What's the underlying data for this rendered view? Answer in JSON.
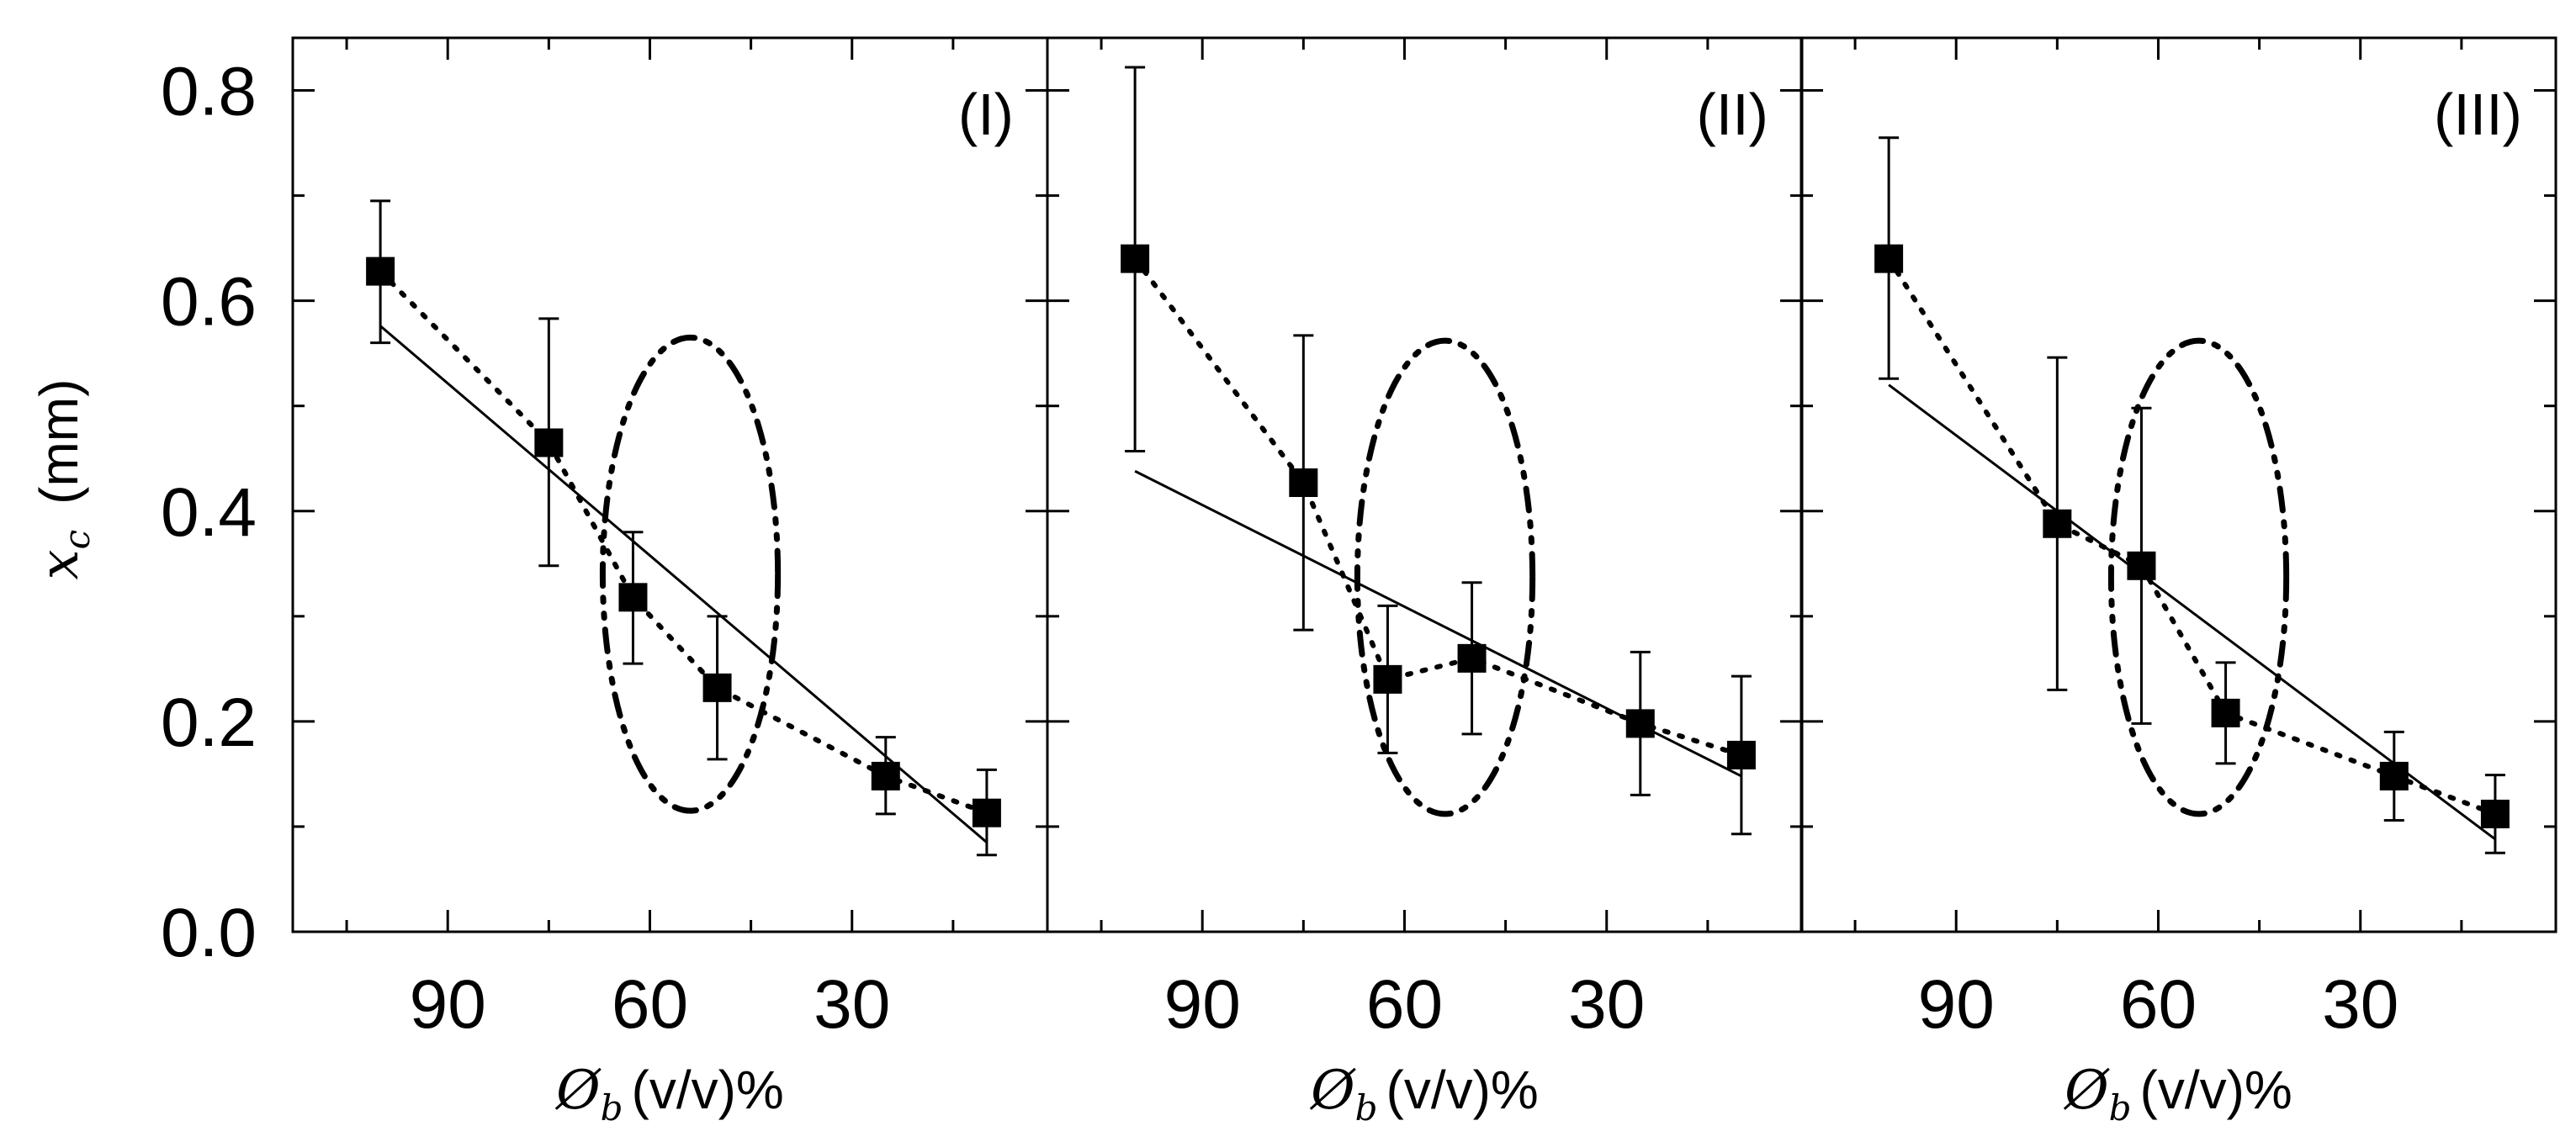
{
  "chart_data": {
    "type": "scatter",
    "ylabel": {
      "symbol": "x",
      "subscript": "c",
      "unit": "(mm)"
    },
    "xlabel": {
      "symbol": "Ø",
      "subscript": "b",
      "unit": "(v/v)%"
    },
    "ylim": [
      0.0,
      0.85
    ],
    "xlim": [
      113,
      1
    ],
    "yticks": [
      0.0,
      0.2,
      0.4,
      0.6,
      0.8
    ],
    "ytick_labels": [
      "0.0",
      "0.2",
      "0.4",
      "0.6",
      "0.8"
    ],
    "xticks": [
      90,
      60,
      30
    ],
    "xtick_labels": [
      "90",
      "60",
      "30"
    ],
    "panels": [
      {
        "label": "(I)",
        "points": [
          {
            "x": 100,
            "y": 0.628,
            "err_low": 0.068,
            "err_high": 0.067
          },
          {
            "x": 75,
            "y": 0.465,
            "err_low": 0.117,
            "err_high": 0.118
          },
          {
            "x": 62.5,
            "y": 0.318,
            "err_low": 0.063,
            "err_high": 0.062
          },
          {
            "x": 50,
            "y": 0.232,
            "err_low": 0.068,
            "err_high": 0.068
          },
          {
            "x": 25,
            "y": 0.148,
            "err_low": 0.036,
            "err_high": 0.037
          },
          {
            "x": 10,
            "y": 0.113,
            "err_low": 0.04,
            "err_high": 0.041
          }
        ],
        "fit_line": {
          "x": [
            100,
            10
          ],
          "y": [
            0.576,
            0.085
          ]
        },
        "ellipse": {
          "cx": 54,
          "cy": 0.34,
          "rx": 13,
          "ry": 0.225
        }
      },
      {
        "label": "(II)",
        "points": [
          {
            "x": 100,
            "y": 0.64,
            "err_low": 0.183,
            "err_high": 0.182
          },
          {
            "x": 75,
            "y": 0.427,
            "err_low": 0.14,
            "err_high": 0.14
          },
          {
            "x": 62.5,
            "y": 0.24,
            "err_low": 0.07,
            "err_high": 0.07
          },
          {
            "x": 50,
            "y": 0.26,
            "err_low": 0.072,
            "err_high": 0.072
          },
          {
            "x": 25,
            "y": 0.198,
            "err_low": 0.068,
            "err_high": 0.068
          },
          {
            "x": 10,
            "y": 0.168,
            "err_low": 0.075,
            "err_high": 0.075
          }
        ],
        "fit_line": {
          "x": [
            100,
            10
          ],
          "y": [
            0.438,
            0.148
          ]
        },
        "ellipse": {
          "cx": 54,
          "cy": 0.337,
          "rx": 13,
          "ry": 0.225
        }
      },
      {
        "label": "(III)",
        "points": [
          {
            "x": 100,
            "y": 0.64,
            "err_low": 0.114,
            "err_high": 0.115
          },
          {
            "x": 75,
            "y": 0.388,
            "err_low": 0.158,
            "err_high": 0.158
          },
          {
            "x": 62.5,
            "y": 0.348,
            "err_low": 0.15,
            "err_high": 0.15
          },
          {
            "x": 50,
            "y": 0.208,
            "err_low": 0.048,
            "err_high": 0.048
          },
          {
            "x": 25,
            "y": 0.148,
            "err_low": 0.042,
            "err_high": 0.042
          },
          {
            "x": 10,
            "y": 0.112,
            "err_low": 0.037,
            "err_high": 0.037
          }
        ],
        "fit_line": {
          "x": [
            100,
            10
          ],
          "y": [
            0.52,
            0.088
          ]
        },
        "ellipse": {
          "cx": 54,
          "cy": 0.337,
          "rx": 13,
          "ry": 0.225
        }
      }
    ]
  }
}
